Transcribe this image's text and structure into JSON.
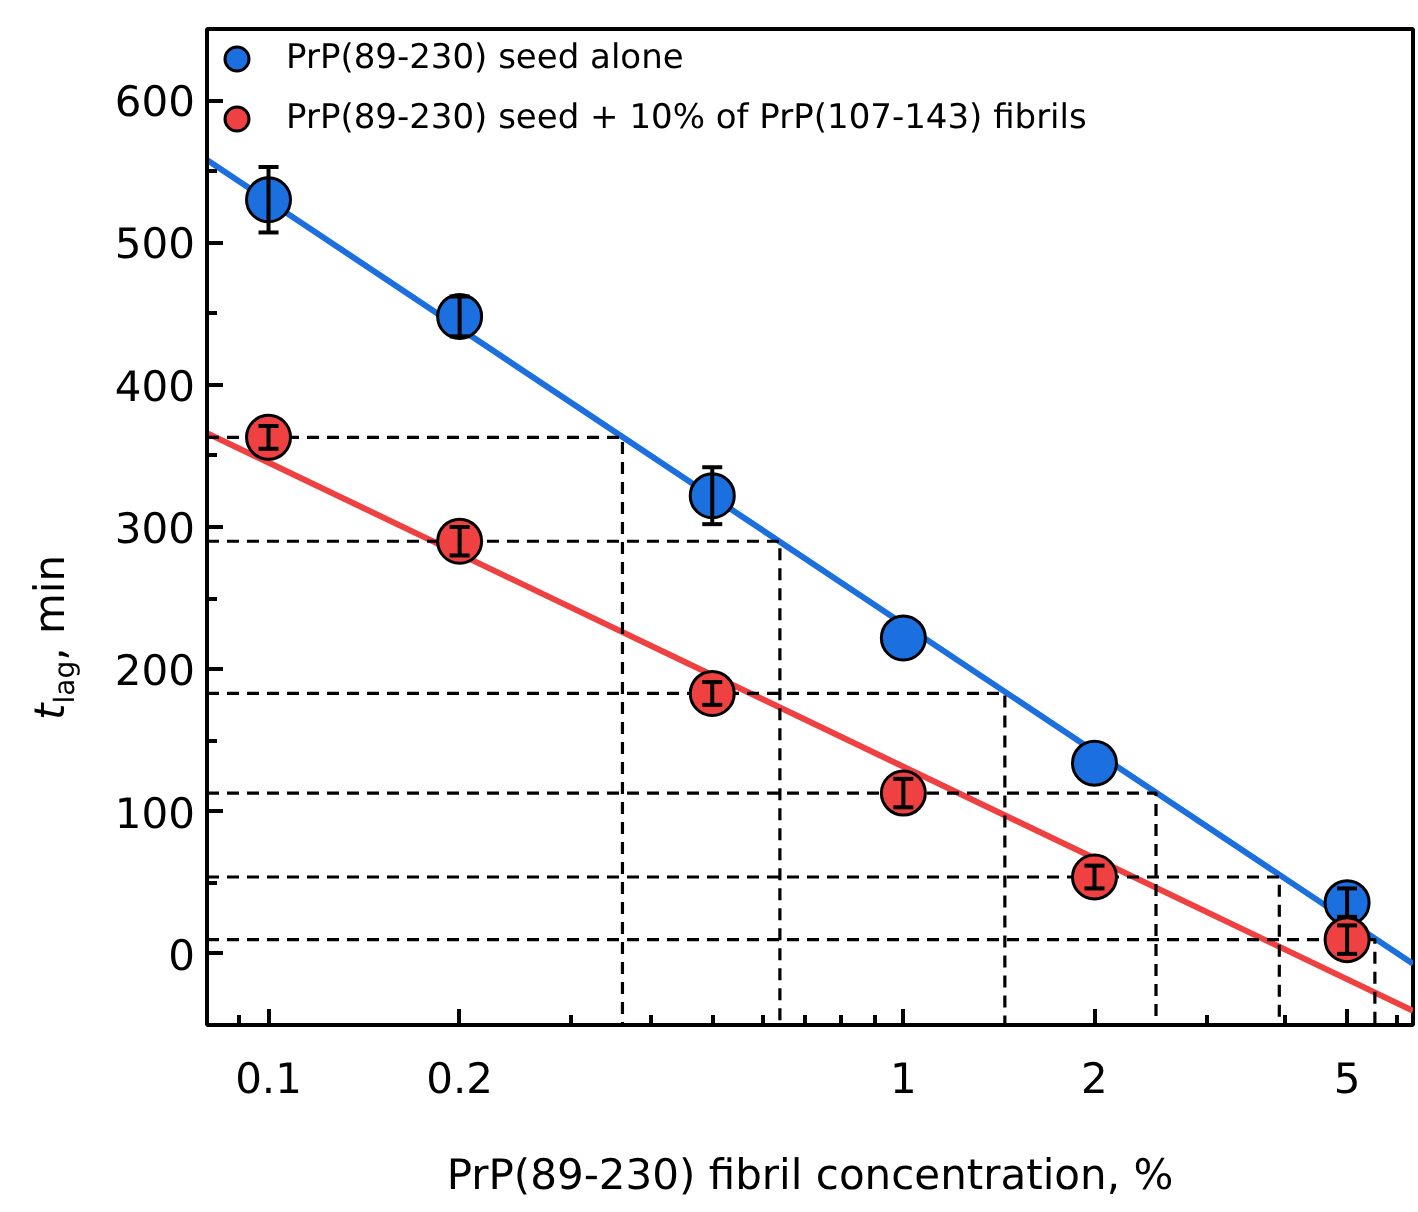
{
  "chart_data": {
    "type": "scatter",
    "xlabel": "PrP(89-230) fibril concentration, %",
    "ylabel": "t$_{lag}$, min",
    "log": "x",
    "x": [
      0.1,
      0.2,
      0.5,
      1,
      2,
      5
    ],
    "xlim": [
      0.08,
      6.35
    ],
    "ylim": [
      -50,
      650
    ],
    "xticks": [
      0.1,
      0.2,
      1,
      2,
      5
    ],
    "yticks": [
      0,
      100,
      200,
      300,
      400,
      500,
      600
    ],
    "grid": false,
    "legend": "top left",
    "marker": "circle",
    "series": [
      {
        "name": "PrP(89-230) seed alone",
        "color": "#1b6fdf",
        "values": [
          530,
          448,
          322,
          222,
          134,
          36
        ],
        "errors": [
          23,
          14,
          20,
          null,
          null,
          10
        ]
      },
      {
        "name": "PrP(89-230) seed + 10% of PrP(107-143) fibrils",
        "color": "#ef4141",
        "values": [
          363,
          290,
          183,
          113,
          54,
          10
        ],
        "errors": [
          8,
          10,
          8,
          10,
          8,
          10
        ]
      },
      {
        "type": "line",
        "color": "#1b6fdf",
        "x": [
          0.08,
          6.35
        ],
        "values": [
          558,
          -7
        ],
        "marker": "none",
        "line_style": "solid"
      },
      {
        "type": "line",
        "color": "#ef4141",
        "x": [
          0.08,
          6.35
        ],
        "values": [
          366,
          -40
        ],
        "marker": "none",
        "line_style": "solid"
      },
      {
        "type": "line",
        "color": "#000000",
        "x": [
          0.08,
          0.361,
          0.361
        ],
        "values": [
          363,
          363,
          -50
        ],
        "marker": "none",
        "line_style": "dashed"
      },
      {
        "type": "line",
        "color": "#000000",
        "x": [
          0.08,
          0.639,
          0.639
        ],
        "values": [
          290,
          290,
          -50
        ],
        "marker": "none",
        "line_style": "dashed"
      },
      {
        "type": "line",
        "color": "#000000",
        "x": [
          0.08,
          1.445,
          1.445
        ],
        "values": [
          183,
          183,
          -50
        ],
        "marker": "none",
        "line_style": "dashed"
      },
      {
        "type": "line",
        "color": "#000000",
        "x": [
          0.08,
          2.5,
          2.5
        ],
        "values": [
          113,
          113,
          -50
        ],
        "marker": "none",
        "line_style": "dashed"
      },
      {
        "type": "line",
        "color": "#000000",
        "x": [
          0.08,
          3.91,
          3.91
        ],
        "values": [
          54,
          54,
          -50
        ],
        "marker": "none",
        "line_style": "dashed"
      },
      {
        "type": "line",
        "color": "#000000",
        "x": [
          0.08,
          5.53,
          5.53
        ],
        "values": [
          10,
          10,
          -50
        ],
        "marker": "none",
        "line_style": "dashed"
      }
    ]
  }
}
